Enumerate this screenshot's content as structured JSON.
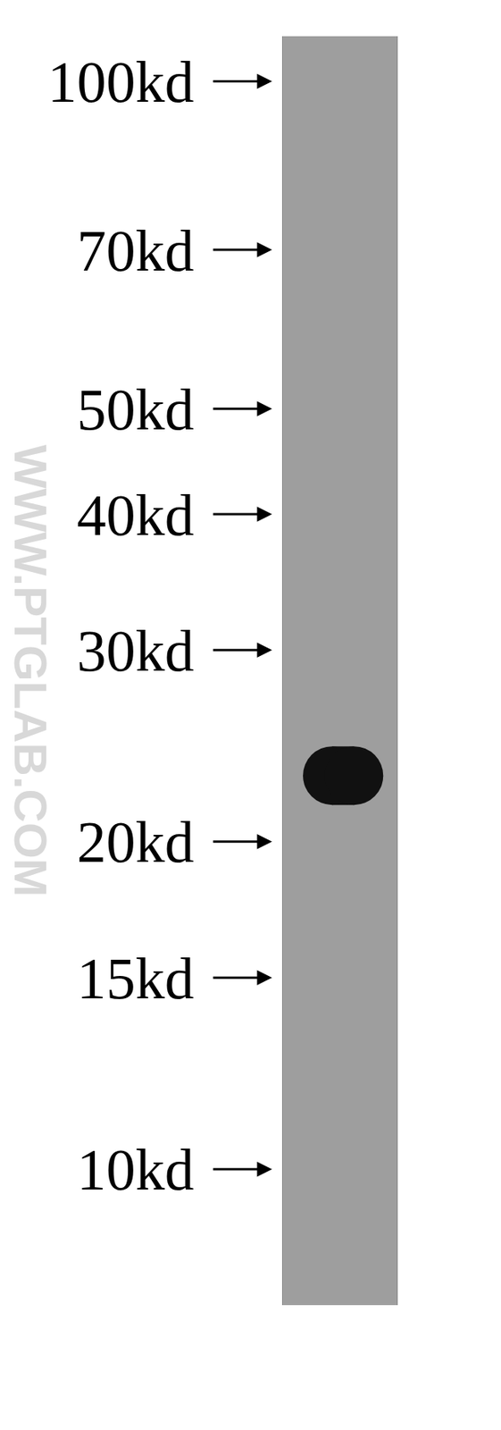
{
  "chart_data": {
    "type": "western_blot",
    "yticks": [
      {
        "value": 100,
        "label": "100kd"
      },
      {
        "value": 70,
        "label": "70kd"
      },
      {
        "value": 50,
        "label": "50kd"
      },
      {
        "value": 40,
        "label": "40kd"
      },
      {
        "value": 30,
        "label": "30kd"
      },
      {
        "value": 20,
        "label": "20kd"
      },
      {
        "value": 15,
        "label": "15kd"
      },
      {
        "value": 10,
        "label": "10kd"
      }
    ],
    "ylim": [
      7.5,
      110
    ],
    "log": "y",
    "values": [
      23
    ],
    "color": "#111111",
    "annotations": [
      "WWW.PTGLAB.COM"
    ]
  }
}
